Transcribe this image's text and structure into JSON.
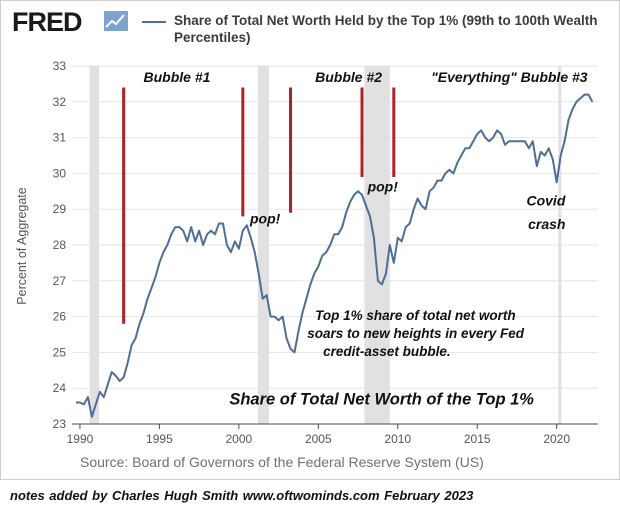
{
  "logo": "FRED",
  "chart_data": {
    "type": "line",
    "legend": "Share of Total Net Worth Held by the Top 1% (99th to 100th Wealth Percentiles)",
    "ylabel": "Percent of Aggregate",
    "xlabel": "",
    "xlim": [
      1989.5,
      2022.6
    ],
    "ylim": [
      23,
      33
    ],
    "yticks": [
      23,
      24,
      25,
      26,
      27,
      28,
      29,
      30,
      31,
      32,
      33
    ],
    "xticks": [
      1990,
      1995,
      2000,
      2005,
      2010,
      2015,
      2020
    ],
    "series": [
      {
        "color": "#4d6e96",
        "points": [
          [
            1989.75,
            23.6
          ],
          [
            1990.0,
            23.6
          ],
          [
            1990.25,
            23.55
          ],
          [
            1990.5,
            23.75
          ],
          [
            1990.75,
            23.2
          ],
          [
            1991.0,
            23.55
          ],
          [
            1991.25,
            23.9
          ],
          [
            1991.5,
            23.75
          ],
          [
            1991.75,
            24.1
          ],
          [
            1992.0,
            24.45
          ],
          [
            1992.25,
            24.35
          ],
          [
            1992.5,
            24.2
          ],
          [
            1992.75,
            24.3
          ],
          [
            1993.0,
            24.7
          ],
          [
            1993.25,
            25.2
          ],
          [
            1993.5,
            25.4
          ],
          [
            1993.75,
            25.8
          ],
          [
            1994.0,
            26.1
          ],
          [
            1994.25,
            26.5
          ],
          [
            1994.5,
            26.8
          ],
          [
            1994.75,
            27.1
          ],
          [
            1995.0,
            27.5
          ],
          [
            1995.25,
            27.8
          ],
          [
            1995.5,
            28.0
          ],
          [
            1995.75,
            28.3
          ],
          [
            1996.0,
            28.5
          ],
          [
            1996.25,
            28.5
          ],
          [
            1996.5,
            28.4
          ],
          [
            1996.75,
            28.1
          ],
          [
            1997.0,
            28.5
          ],
          [
            1997.25,
            28.1
          ],
          [
            1997.5,
            28.4
          ],
          [
            1997.75,
            28.0
          ],
          [
            1998.0,
            28.3
          ],
          [
            1998.25,
            28.4
          ],
          [
            1998.5,
            28.3
          ],
          [
            1998.75,
            28.6
          ],
          [
            1999.0,
            28.6
          ],
          [
            1999.25,
            28.0
          ],
          [
            1999.5,
            27.8
          ],
          [
            1999.75,
            28.1
          ],
          [
            2000.0,
            27.9
          ],
          [
            2000.25,
            28.4
          ],
          [
            2000.5,
            28.55
          ],
          [
            2000.75,
            28.2
          ],
          [
            2001.0,
            27.8
          ],
          [
            2001.25,
            27.2
          ],
          [
            2001.5,
            26.5
          ],
          [
            2001.75,
            26.6
          ],
          [
            2002.0,
            26.0
          ],
          [
            2002.25,
            26.0
          ],
          [
            2002.5,
            25.9
          ],
          [
            2002.75,
            26.0
          ],
          [
            2003.0,
            25.4
          ],
          [
            2003.25,
            25.1
          ],
          [
            2003.5,
            25.0
          ],
          [
            2003.75,
            25.6
          ],
          [
            2004.0,
            26.1
          ],
          [
            2004.25,
            26.5
          ],
          [
            2004.5,
            26.9
          ],
          [
            2004.75,
            27.2
          ],
          [
            2005.0,
            27.4
          ],
          [
            2005.25,
            27.7
          ],
          [
            2005.5,
            27.8
          ],
          [
            2005.75,
            28.0
          ],
          [
            2006.0,
            28.3
          ],
          [
            2006.25,
            28.3
          ],
          [
            2006.5,
            28.5
          ],
          [
            2006.75,
            28.9
          ],
          [
            2007.0,
            29.2
          ],
          [
            2007.25,
            29.4
          ],
          [
            2007.5,
            29.5
          ],
          [
            2007.75,
            29.4
          ],
          [
            2008.0,
            29.1
          ],
          [
            2008.25,
            28.8
          ],
          [
            2008.5,
            28.2
          ],
          [
            2008.75,
            27.0
          ],
          [
            2009.0,
            26.9
          ],
          [
            2009.25,
            27.2
          ],
          [
            2009.5,
            28.0
          ],
          [
            2009.75,
            27.5
          ],
          [
            2010.0,
            28.2
          ],
          [
            2010.25,
            28.1
          ],
          [
            2010.5,
            28.5
          ],
          [
            2010.75,
            28.6
          ],
          [
            2011.0,
            29.0
          ],
          [
            2011.25,
            29.3
          ],
          [
            2011.5,
            29.1
          ],
          [
            2011.75,
            29.0
          ],
          [
            2012.0,
            29.5
          ],
          [
            2012.25,
            29.6
          ],
          [
            2012.5,
            29.8
          ],
          [
            2012.75,
            29.8
          ],
          [
            2013.0,
            30.0
          ],
          [
            2013.25,
            30.1
          ],
          [
            2013.5,
            30.0
          ],
          [
            2013.75,
            30.3
          ],
          [
            2014.0,
            30.5
          ],
          [
            2014.25,
            30.7
          ],
          [
            2014.5,
            30.7
          ],
          [
            2014.75,
            30.9
          ],
          [
            2015.0,
            31.1
          ],
          [
            2015.25,
            31.2
          ],
          [
            2015.5,
            31.0
          ],
          [
            2015.75,
            30.9
          ],
          [
            2016.0,
            31.0
          ],
          [
            2016.25,
            31.2
          ],
          [
            2016.5,
            31.1
          ],
          [
            2016.75,
            30.8
          ],
          [
            2017.0,
            30.9
          ],
          [
            2017.5,
            30.9
          ],
          [
            2018.0,
            30.9
          ],
          [
            2018.25,
            30.7
          ],
          [
            2018.5,
            30.9
          ],
          [
            2018.75,
            30.2
          ],
          [
            2019.0,
            30.6
          ],
          [
            2019.25,
            30.5
          ],
          [
            2019.5,
            30.7
          ],
          [
            2019.75,
            30.4
          ],
          [
            2020.0,
            29.75
          ],
          [
            2020.25,
            30.5
          ],
          [
            2020.5,
            30.9
          ],
          [
            2020.75,
            31.5
          ],
          [
            2021.0,
            31.8
          ],
          [
            2021.25,
            32.0
          ],
          [
            2021.5,
            32.1
          ],
          [
            2021.75,
            32.2
          ],
          [
            2022.0,
            32.2
          ],
          [
            2022.25,
            32.0
          ]
        ]
      }
    ],
    "recessions": [
      [
        1990.6,
        1991.2
      ],
      [
        2001.2,
        2001.9
      ],
      [
        2007.9,
        2009.5
      ],
      [
        2020.1,
        2020.3
      ]
    ],
    "markers": [
      {
        "x": 1992.75,
        "y1": 25.8,
        "y2": 32.4
      },
      {
        "x": 2000.25,
        "y1": 28.8,
        "y2": 32.4
      },
      {
        "x": 2003.25,
        "y1": 28.9,
        "y2": 32.4
      },
      {
        "x": 2007.75,
        "y1": 29.9,
        "y2": 32.4
      },
      {
        "x": 2009.75,
        "y1": 29.9,
        "y2": 32.4
      }
    ],
    "annotations": [
      {
        "text": "Bubble #1",
        "x": 1994.0,
        "y": 32.55,
        "size": 14
      },
      {
        "text": "Bubble #2",
        "x": 2004.8,
        "y": 32.55,
        "size": 14
      },
      {
        "text": "\"Everything\" Bubble #3",
        "x": 2012.1,
        "y": 32.55,
        "size": 14
      },
      {
        "text": "pop!",
        "x": 2000.7,
        "y": 28.6,
        "size": 14
      },
      {
        "text": "pop!",
        "x": 2008.1,
        "y": 29.5,
        "size": 14
      },
      {
        "text": "Covid",
        "x": 2018.1,
        "y": 29.1,
        "size": 14
      },
      {
        "text": "crash",
        "x": 2018.2,
        "y": 28.45,
        "size": 14
      },
      {
        "text": "Top 1% share of total net worth",
        "x": 2004.8,
        "y": 25.9,
        "size": 13.5
      },
      {
        "text": "soars to new heights in every Fed",
        "x": 2004.3,
        "y": 25.4,
        "size": 13.5
      },
      {
        "text": "credit-asset bubble.",
        "x": 2005.3,
        "y": 24.9,
        "size": 13.5
      },
      {
        "text": "Share of Total Net Worth of the Top 1%",
        "x": 1999.4,
        "y": 23.55,
        "size": 16.5
      }
    ]
  },
  "source": "Source: Board of Governors of the Federal Reserve System (US)",
  "notes": "notes added by Charles Hugh Smith   www.oftwominds.com    February 2023",
  "colors": {
    "line": "#4d6e96",
    "recession": "#e1e1e1",
    "marker": "#b21f24",
    "grid": "#e6e6e6",
    "axis": "#4a4a4a"
  }
}
